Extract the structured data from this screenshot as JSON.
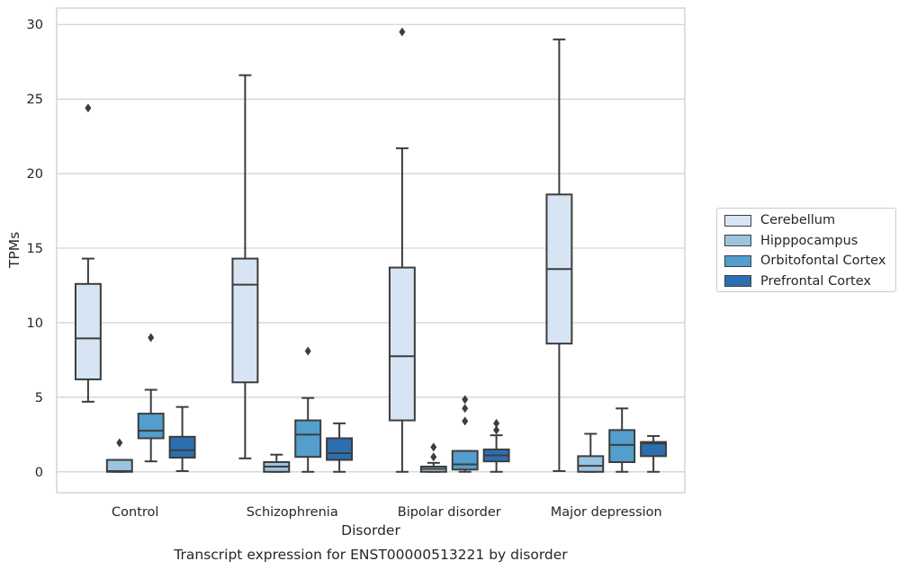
{
  "chart_data": {
    "type": "box",
    "xlabel": "Disorder",
    "ylabel": "TPMs",
    "caption": "Transcript expression for ENST00000513221 by disorder",
    "categories": [
      "Control",
      "Schizophrenia",
      "Bipolar disorder",
      "Major depression"
    ],
    "ylim": [
      -1.4,
      31.1
    ],
    "yticks": [
      0,
      5,
      10,
      15,
      20,
      25,
      30
    ],
    "grid": "horizontal",
    "legend_position": "right",
    "series": [
      {
        "name": "Cerebellum",
        "color": "#d6e4f3",
        "boxes": [
          {
            "category": "Control",
            "whislo": 4.7,
            "q1": 6.2,
            "med": 8.95,
            "q3": 12.6,
            "whishi": 14.3,
            "fliers": [
              24.4
            ]
          },
          {
            "category": "Schizophrenia",
            "whislo": 0.9,
            "q1": 6.0,
            "med": 12.55,
            "q3": 14.3,
            "whishi": 26.6,
            "fliers": []
          },
          {
            "category": "Bipolar disorder",
            "whislo": 0.0,
            "q1": 3.45,
            "med": 7.75,
            "q3": 13.7,
            "whishi": 21.7,
            "fliers": [
              29.5
            ]
          },
          {
            "category": "Major depression",
            "whislo": 0.05,
            "q1": 8.6,
            "med": 13.6,
            "q3": 18.6,
            "whishi": 29.0,
            "fliers": []
          }
        ]
      },
      {
        "name": "Hipppocampus",
        "color": "#9ac4e0",
        "boxes": [
          {
            "category": "Control",
            "whislo": 0.0,
            "q1": 0.0,
            "med": 0.05,
            "q3": 0.8,
            "whishi": 0.8,
            "fliers": [
              1.95
            ]
          },
          {
            "category": "Schizophrenia",
            "whislo": 0.0,
            "q1": 0.0,
            "med": 0.35,
            "q3": 0.65,
            "whishi": 1.15,
            "fliers": []
          },
          {
            "category": "Bipolar disorder",
            "whislo": 0.0,
            "q1": 0.0,
            "med": 0.2,
            "q3": 0.35,
            "whishi": 0.6,
            "fliers": [
              1.0,
              1.65
            ]
          },
          {
            "category": "Major depression",
            "whislo": 0.0,
            "q1": 0.0,
            "med": 0.4,
            "q3": 1.05,
            "whishi": 2.55,
            "fliers": []
          }
        ]
      },
      {
        "name": "Orbitofontal Cortex",
        "color": "#539ecd",
        "boxes": [
          {
            "category": "Control",
            "whislo": 0.7,
            "q1": 2.25,
            "med": 2.75,
            "q3": 3.9,
            "whishi": 5.5,
            "fliers": [
              9.0
            ]
          },
          {
            "category": "Schizophrenia",
            "whislo": 0.0,
            "q1": 1.0,
            "med": 2.5,
            "q3": 3.45,
            "whishi": 4.95,
            "fliers": [
              8.1
            ]
          },
          {
            "category": "Bipolar disorder",
            "whislo": 0.0,
            "q1": 0.15,
            "med": 0.5,
            "q3": 1.4,
            "whishi": 1.4,
            "fliers": [
              3.4,
              4.25,
              4.85
            ]
          },
          {
            "category": "Major depression",
            "whislo": 0.0,
            "q1": 0.65,
            "med": 1.8,
            "q3": 2.8,
            "whishi": 4.25,
            "fliers": []
          }
        ]
      },
      {
        "name": "Prefrontal Cortex",
        "color": "#2c6fb0",
        "boxes": [
          {
            "category": "Control",
            "whislo": 0.05,
            "q1": 0.95,
            "med": 1.45,
            "q3": 2.35,
            "whishi": 4.35,
            "fliers": []
          },
          {
            "category": "Schizophrenia",
            "whislo": 0.0,
            "q1": 0.8,
            "med": 1.25,
            "q3": 2.25,
            "whishi": 3.25,
            "fliers": []
          },
          {
            "category": "Bipolar disorder",
            "whislo": 0.0,
            "q1": 0.7,
            "med": 1.1,
            "q3": 1.5,
            "whishi": 2.45,
            "fliers": [
              2.8,
              3.25
            ]
          },
          {
            "category": "Major depression",
            "whislo": 0.0,
            "q1": 1.05,
            "med": 1.9,
            "q3": 2.0,
            "whishi": 2.4,
            "fliers": []
          }
        ]
      }
    ]
  }
}
